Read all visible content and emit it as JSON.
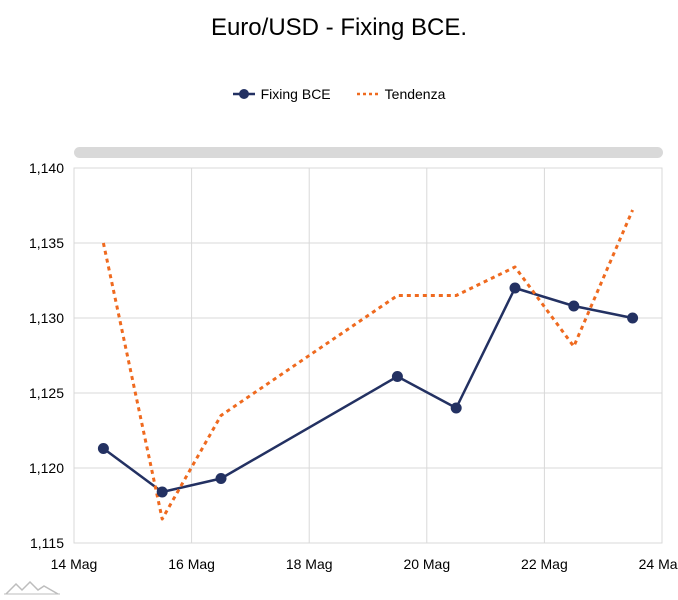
{
  "chart_data": {
    "type": "line",
    "title": "Euro/USD - Fixing BCE.",
    "xlabel": "",
    "ylabel": "",
    "x_ticks": [
      "14 Mag",
      "16 Mag",
      "18 Mag",
      "20 Mag",
      "22 Mag",
      "24 Mag"
    ],
    "x_tick_days": [
      14,
      16,
      18,
      20,
      22,
      24
    ],
    "y_ticks": [
      "1,115",
      "1,120",
      "1,125",
      "1,130",
      "1,135",
      "1,140"
    ],
    "ylim": [
      1.115,
      1.14
    ],
    "xlim": [
      14,
      24
    ],
    "grid": true,
    "legend_position": "top-center",
    "series": [
      {
        "name": "Fixing BCE",
        "style": "solid-with-markers",
        "color": "#233162",
        "points": [
          {
            "day": 14.5,
            "value": 1.1213
          },
          {
            "day": 15.5,
            "value": 1.1184
          },
          {
            "day": 16.5,
            "value": 1.1193
          },
          {
            "day": 19.5,
            "value": 1.1261
          },
          {
            "day": 20.5,
            "value": 1.124
          },
          {
            "day": 21.5,
            "value": 1.132
          },
          {
            "day": 22.5,
            "value": 1.1308
          },
          {
            "day": 23.5,
            "value": 1.13
          }
        ]
      },
      {
        "name": "Tendenza",
        "style": "dashed",
        "color": "#ef6a1f",
        "points": [
          {
            "day": 14.5,
            "value": 1.135
          },
          {
            "day": 15.5,
            "value": 1.1166
          },
          {
            "day": 16.5,
            "value": 1.1235
          },
          {
            "day": 19.5,
            "value": 1.1315
          },
          {
            "day": 20.5,
            "value": 1.1315
          },
          {
            "day": 21.5,
            "value": 1.1334
          },
          {
            "day": 22.5,
            "value": 1.1281
          },
          {
            "day": 23.5,
            "value": 1.1372
          }
        ]
      }
    ]
  }
}
